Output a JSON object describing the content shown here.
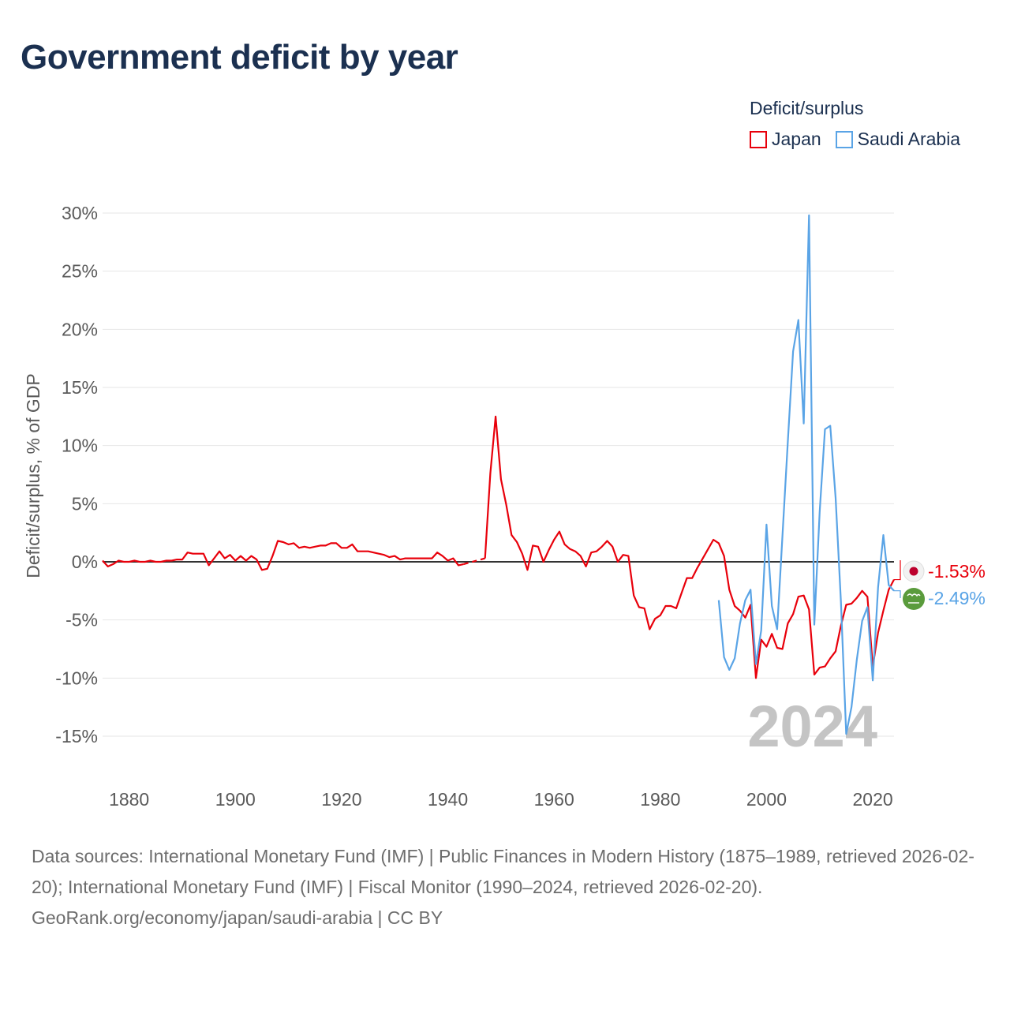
{
  "title": "Government deficit by year",
  "legend": {
    "title": "Deficit/surplus",
    "items": [
      {
        "label": "Japan",
        "color": "#e8000b"
      },
      {
        "label": "Saudi Arabia",
        "color": "#5aa4e6"
      }
    ]
  },
  "footer": {
    "sources": "Data sources: International Monetary Fund (IMF) | Public Finances in Modern History (1875–1989, retrieved 2026-02-20); International Monetary Fund (IMF) | Fiscal Monitor (1990–2024, retrieved 2026-02-20).",
    "credit": "GeoRank.org/economy/japan/saudi-arabia | CC BY"
  },
  "chart_data": {
    "type": "line",
    "title": "Government deficit by year",
    "xlabel": "",
    "ylabel": "Deficit/surplus, % of GDP",
    "xlim": [
      1875,
      2024
    ],
    "ylim": [
      -18,
      30
    ],
    "y_ticks": [
      30,
      25,
      20,
      15,
      10,
      5,
      0,
      -5,
      -10,
      -15
    ],
    "y_tick_labels": [
      "30%",
      "25%",
      "20%",
      "15%",
      "10%",
      "5%",
      "0%",
      "-5%",
      "-10%",
      "-15%"
    ],
    "x_ticks": [
      1880,
      1900,
      1920,
      1940,
      1960,
      1980,
      2000,
      2020
    ],
    "x_tick_labels": [
      "1880",
      "1900",
      "1920",
      "1940",
      "1960",
      "1980",
      "2000",
      "2020"
    ],
    "year_watermark": "2024",
    "zero_line": true,
    "grid": true,
    "series": [
      {
        "name": "Japan",
        "color": "#e8000b",
        "end_label": "-1.53%",
        "gap_dashed": [
          1943,
          1947
        ],
        "x": [
          1875,
          1876,
          1877,
          1878,
          1879,
          1880,
          1881,
          1882,
          1883,
          1884,
          1885,
          1886,
          1887,
          1888,
          1889,
          1890,
          1891,
          1892,
          1893,
          1894,
          1895,
          1896,
          1897,
          1898,
          1899,
          1900,
          1901,
          1902,
          1903,
          1904,
          1905,
          1906,
          1907,
          1908,
          1909,
          1910,
          1911,
          1912,
          1913,
          1914,
          1915,
          1916,
          1917,
          1918,
          1919,
          1920,
          1921,
          1922,
          1923,
          1924,
          1925,
          1926,
          1927,
          1928,
          1929,
          1930,
          1931,
          1932,
          1933,
          1934,
          1935,
          1936,
          1937,
          1938,
          1939,
          1940,
          1941,
          1942,
          1943,
          1947,
          1948,
          1949,
          1950,
          1951,
          1952,
          1953,
          1954,
          1955,
          1956,
          1957,
          1958,
          1959,
          1960,
          1961,
          1962,
          1963,
          1964,
          1965,
          1966,
          1967,
          1968,
          1969,
          1970,
          1971,
          1972,
          1973,
          1974,
          1975,
          1976,
          1977,
          1978,
          1979,
          1980,
          1981,
          1982,
          1983,
          1984,
          1985,
          1986,
          1987,
          1988,
          1989,
          1990,
          1991,
          1992,
          1993,
          1994,
          1995,
          1996,
          1997,
          1998,
          1999,
          2000,
          2001,
          2002,
          2003,
          2004,
          2005,
          2006,
          2007,
          2008,
          2009,
          2010,
          2011,
          2012,
          2013,
          2014,
          2015,
          2016,
          2017,
          2018,
          2019,
          2020,
          2021,
          2022,
          2023,
          2024
        ],
        "values": [
          0.1,
          -0.4,
          -0.2,
          0.1,
          0.0,
          0.0,
          0.1,
          0.0,
          0.0,
          0.1,
          0.0,
          0.0,
          0.1,
          0.1,
          0.2,
          0.2,
          0.8,
          0.7,
          0.7,
          0.7,
          -0.3,
          0.3,
          0.9,
          0.3,
          0.6,
          0.1,
          0.5,
          0.1,
          0.5,
          0.2,
          -0.7,
          -0.6,
          0.5,
          1.8,
          1.7,
          1.5,
          1.6,
          1.2,
          1.3,
          1.2,
          1.3,
          1.4,
          1.4,
          1.6,
          1.6,
          1.2,
          1.2,
          1.5,
          0.9,
          0.9,
          0.9,
          0.8,
          0.7,
          0.6,
          0.4,
          0.5,
          0.2,
          0.3,
          0.3,
          0.3,
          0.3,
          0.3,
          0.3,
          0.8,
          0.5,
          0.1,
          0.3,
          -0.3,
          -0.2,
          0.3,
          7.6,
          12.5,
          7.1,
          4.9,
          2.3,
          1.7,
          0.7,
          -0.7,
          1.4,
          1.3,
          0.0,
          1.0,
          1.9,
          2.6,
          1.5,
          1.1,
          0.9,
          0.5,
          -0.4,
          0.8,
          0.9,
          1.3,
          1.8,
          1.3,
          0.0,
          0.6,
          0.5,
          -2.9,
          -3.9,
          -4.0,
          -5.8,
          -4.9,
          -4.6,
          -3.8,
          -3.8,
          -4.0,
          -2.7,
          -1.4,
          -1.4,
          -0.5,
          0.3,
          1.1,
          1.9,
          1.6,
          0.5,
          -2.4,
          -3.8,
          -4.2,
          -4.8,
          -3.7,
          -10.0,
          -6.7,
          -7.3,
          -6.2,
          -7.4,
          -7.5,
          -5.3,
          -4.5,
          -3.0,
          -2.9,
          -4.1,
          -9.7,
          -9.1,
          -9.0,
          -8.3,
          -7.7,
          -5.5,
          -3.7,
          -3.6,
          -3.1,
          -2.5,
          -3.0,
          -9.0,
          -6.1,
          -4.2,
          -2.4,
          -1.53
        ]
      },
      {
        "name": "Saudi Arabia",
        "color": "#5aa4e6",
        "end_label": "-2.49%",
        "x": [
          1991,
          1992,
          1993,
          1994,
          1995,
          1996,
          1997,
          1998,
          1999,
          2000,
          2001,
          2002,
          2003,
          2004,
          2005,
          2006,
          2007,
          2008,
          2009,
          2010,
          2011,
          2012,
          2013,
          2014,
          2015,
          2016,
          2017,
          2018,
          2019,
          2020,
          2021,
          2022,
          2023,
          2024
        ],
        "values": [
          -3.3,
          -8.2,
          -9.3,
          -8.3,
          -5.3,
          -3.3,
          -2.4,
          -8.8,
          -5.9,
          3.2,
          -3.8,
          -5.8,
          2.2,
          10.3,
          18.1,
          20.8,
          11.9,
          29.8,
          -5.4,
          4.3,
          11.4,
          11.7,
          5.5,
          -3.4,
          -14.8,
          -12.5,
          -8.4,
          -5.1,
          -3.9,
          -10.2,
          -2.2,
          2.3,
          -2.0,
          -2.49
        ]
      }
    ]
  }
}
